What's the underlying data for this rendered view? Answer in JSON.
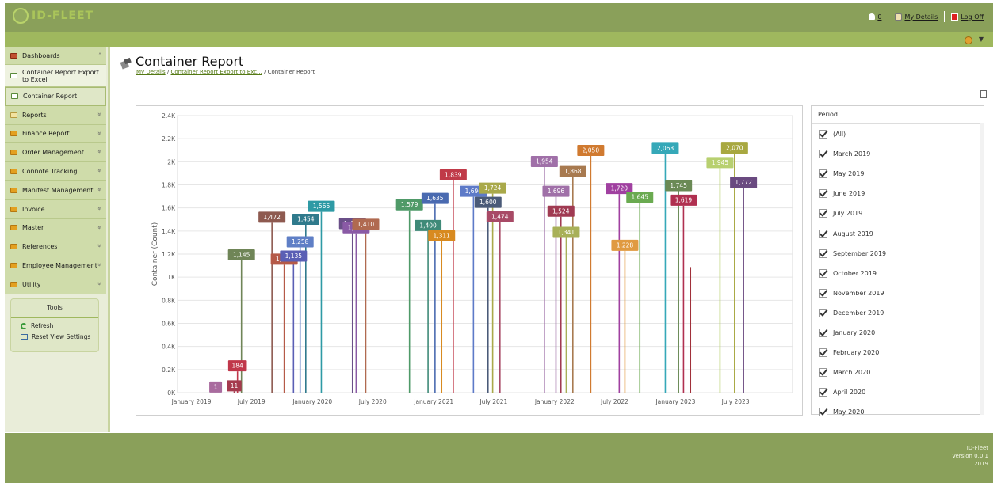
{
  "app": {
    "logo_text": "ID-FLEET",
    "notification_count": "0",
    "my_details": "My Details",
    "log_off": "Log Off"
  },
  "sidebar": {
    "items": [
      {
        "label": "Dashboards",
        "icon": "dashboard-icon",
        "expanded": true
      },
      {
        "label": "Container Report Export to Excel",
        "icon": "excel-icon",
        "sub": true
      },
      {
        "label": "Container Report",
        "icon": "container-icon",
        "sub": true,
        "active": true
      },
      {
        "label": "Reports",
        "icon": "reports-icon"
      },
      {
        "label": "Finance Report",
        "icon": "folder-icon"
      },
      {
        "label": "Order Management",
        "icon": "folder-icon"
      },
      {
        "label": "Connote Tracking",
        "icon": "folder-icon"
      },
      {
        "label": "Manifest Management",
        "icon": "folder-icon"
      },
      {
        "label": "Invoice",
        "icon": "folder-icon"
      },
      {
        "label": "Master",
        "icon": "folder-icon"
      },
      {
        "label": "References",
        "icon": "folder-icon"
      },
      {
        "label": "Employee Management",
        "icon": "folder-icon"
      },
      {
        "label": "Utility",
        "icon": "folder-icon"
      }
    ],
    "tools": {
      "title": "Tools",
      "refresh": "Refresh",
      "reset": "Reset View Settings"
    }
  },
  "page": {
    "title": "Container Report",
    "breadcrumb": [
      "My Details",
      "Container Report Export to Exc...",
      "Container Report"
    ]
  },
  "period": {
    "title": "Period",
    "items": [
      "(All)",
      "March 2019",
      "May 2019",
      "June 2019",
      "July 2019",
      "August 2019",
      "September 2019",
      "October 2019",
      "November 2019",
      "December 2019",
      "January 2020",
      "February 2020",
      "March 2020",
      "April 2020",
      "May 2020"
    ]
  },
  "chart_data": {
    "type": "bar",
    "ylabel": "Container (Count)",
    "ylim": [
      0,
      2400
    ],
    "y_ticks": [
      "0K",
      "0.2K",
      "0.4K",
      "0.6K",
      "0.8K",
      "1K",
      "1.2K",
      "1.4K",
      "1.6K",
      "1.8K",
      "2K",
      "2.2K",
      "2.4K"
    ],
    "x_ticks": [
      "January 2019",
      "July 2019",
      "January 2020",
      "July 2020",
      "January 2021",
      "July 2021",
      "January 2022",
      "July 2022",
      "January 2023",
      "July 2023"
    ],
    "grid": true,
    "points": [
      {
        "date": "2019-03-15",
        "value": 1,
        "color": "#a96b9e"
      },
      {
        "date": "2019-05-10",
        "value": 11,
        "color": "#a53a4e"
      },
      {
        "date": "2019-05-20",
        "value": 184,
        "color": "#c0374a"
      },
      {
        "date": "2019-06-01",
        "value": 1145,
        "color": "#6f8557"
      },
      {
        "date": "2019-09-01",
        "value": 1472,
        "color": "#8e5a50"
      },
      {
        "date": "2019-10-08",
        "value": 1108,
        "color": "#b55a48"
      },
      {
        "date": "2019-11-05",
        "value": 1135,
        "color": "#5a5fb5"
      },
      {
        "date": "2019-11-25",
        "value": 1258,
        "color": "#5f7fc6"
      },
      {
        "date": "2019-12-12",
        "value": 1454,
        "color": "#2f7a8c"
      },
      {
        "date": "2020-01-28",
        "value": 1566,
        "color": "#2e9aa5"
      },
      {
        "date": "2020-05-01",
        "value": 1416,
        "color": "#6a4f88"
      },
      {
        "date": "2020-05-12",
        "value": 1380,
        "color": "#8a5aa5"
      },
      {
        "date": "2020-06-10",
        "value": 1410,
        "color": "#b06a50"
      },
      {
        "date": "2020-10-20",
        "value": 1579,
        "color": "#4f9a68"
      },
      {
        "date": "2020-12-15",
        "value": 1400,
        "color": "#3f8a78"
      },
      {
        "date": "2021-01-05",
        "value": 1635,
        "color": "#4a6ab0"
      },
      {
        "date": "2021-01-25",
        "value": 1311,
        "color": "#d88a20"
      },
      {
        "date": "2021-03-01",
        "value": 1839,
        "color": "#c03a48"
      },
      {
        "date": "2021-05-01",
        "value": 1696,
        "color": "#5d7ac8"
      },
      {
        "date": "2021-06-14",
        "value": 1600,
        "color": "#4a5a78"
      },
      {
        "date": "2021-06-28",
        "value": 1724,
        "color": "#a9a94a"
      },
      {
        "date": "2021-07-20",
        "value": 1474,
        "color": "#a84a66"
      },
      {
        "date": "2021-12-01",
        "value": 1954,
        "color": "#a070a8"
      },
      {
        "date": "2022-01-05",
        "value": 1696,
        "color": "#a070a8"
      },
      {
        "date": "2022-01-20",
        "value": 1524,
        "color": "#a03a52"
      },
      {
        "date": "2022-02-05",
        "value": 1341,
        "color": "#a8b058"
      },
      {
        "date": "2022-02-25",
        "value": 1868,
        "color": "#a87a50"
      },
      {
        "date": "2022-04-20",
        "value": 2050,
        "color": "#d07a30"
      },
      {
        "date": "2022-07-15",
        "value": 1720,
        "color": "#a040a0"
      },
      {
        "date": "2022-08-01",
        "value": 1228,
        "color": "#e09a40"
      },
      {
        "date": "2022-09-15",
        "value": 1645,
        "color": "#6aaa50"
      },
      {
        "date": "2022-12-01",
        "value": 2068,
        "color": "#35a8b8"
      },
      {
        "date": "2023-01-10",
        "value": 1745,
        "color": "#6a8a55"
      },
      {
        "date": "2023-01-25",
        "value": 1619,
        "color": "#b03050"
      },
      {
        "date": "2023-02-15",
        "value": 1088,
        "color": "#a0303a"
      },
      {
        "date": "2023-05-15",
        "value": 1945,
        "color": "#b8d070"
      },
      {
        "date": "2023-06-28",
        "value": 2070,
        "color": "#a8a840"
      },
      {
        "date": "2023-07-25",
        "value": 1772,
        "color": "#6a4a80"
      }
    ]
  }
}
